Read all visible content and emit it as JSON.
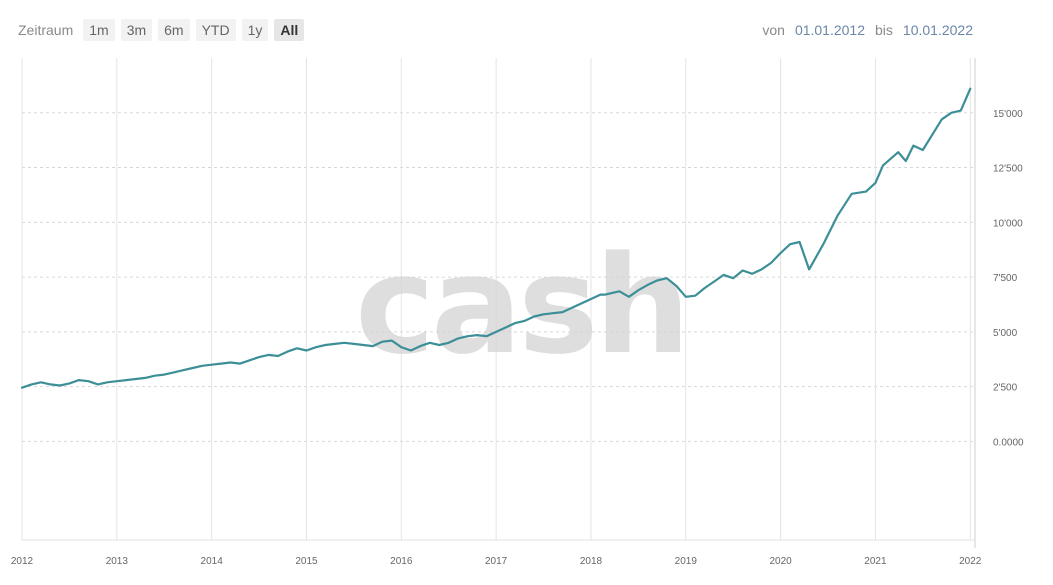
{
  "toolbar": {
    "label": "Zeitraum",
    "ranges": [
      "1m",
      "3m",
      "6m",
      "YTD",
      "1y",
      "All"
    ],
    "active_range": "All"
  },
  "date_range": {
    "from_label": "von",
    "from_value": "01.01.2012",
    "to_label": "bis",
    "to_value": "10.01.2022"
  },
  "watermark": "cash",
  "colors": {
    "line": "#3d8f97",
    "grid": "#d7d7d7",
    "axis_text": "#666666"
  },
  "chart_data": {
    "type": "line",
    "title": "",
    "xlabel": "",
    "ylabel": "",
    "xlim": [
      2012.0,
      2022.05
    ],
    "ylim": [
      -4500,
      17500
    ],
    "grid": true,
    "x_ticks": [
      "2012",
      "2013",
      "2014",
      "2015",
      "2016",
      "2017",
      "2018",
      "2019",
      "2020",
      "2021",
      "2022"
    ],
    "y_ticks": [
      {
        "value": 0,
        "label": "0.0000"
      },
      {
        "value": 2500,
        "label": "2'500"
      },
      {
        "value": 5000,
        "label": "5'000"
      },
      {
        "value": 7500,
        "label": "7'500"
      },
      {
        "value": 10000,
        "label": "10'000"
      },
      {
        "value": 12500,
        "label": "12'500"
      },
      {
        "value": 15000,
        "label": "15'000"
      }
    ],
    "series": [
      {
        "x": [
          2012.0,
          2012.1,
          2012.2,
          2012.3,
          2012.4,
          2012.5,
          2012.6,
          2012.7,
          2012.8,
          2012.9,
          2013.0,
          2013.1,
          2013.2,
          2013.3,
          2013.4,
          2013.5,
          2013.6,
          2013.7,
          2013.8,
          2013.9,
          2014.0,
          2014.1,
          2014.2,
          2014.3,
          2014.4,
          2014.5,
          2014.6,
          2014.7,
          2014.8,
          2014.9,
          2015.0,
          2015.1,
          2015.2,
          2015.3,
          2015.4,
          2015.5,
          2015.6,
          2015.7,
          2015.8,
          2015.9,
          2016.0,
          2016.1,
          2016.2,
          2016.3,
          2016.4,
          2016.5,
          2016.6,
          2016.7,
          2016.8,
          2016.9,
          2017.0,
          2017.1,
          2017.2,
          2017.3,
          2017.4,
          2017.5,
          2017.6,
          2017.7,
          2017.8,
          2017.9,
          2018.0,
          2018.1,
          2018.15,
          2018.3,
          2018.4,
          2018.5,
          2018.6,
          2018.7,
          2018.8,
          2018.9,
          2019.0,
          2019.1,
          2019.2,
          2019.3,
          2019.4,
          2019.5,
          2019.6,
          2019.7,
          2019.8,
          2019.9,
          2020.0,
          2020.1,
          2020.2,
          2020.3,
          2020.45,
          2020.6,
          2020.75,
          2020.9,
          2021.0,
          2021.08,
          2021.16,
          2021.24,
          2021.32,
          2021.4,
          2021.5,
          2021.6,
          2021.7,
          2021.8,
          2021.9,
          2022.0
        ],
        "y": [
          2450,
          2600,
          2700,
          2600,
          2550,
          2650,
          2800,
          2750,
          2600,
          2700,
          2750,
          2800,
          2850,
          2900,
          3000,
          3050,
          3150,
          3250,
          3350,
          3450,
          3500,
          3550,
          3600,
          3550,
          3700,
          3850,
          3950,
          3900,
          4100,
          4250,
          4150,
          4300,
          4400,
          4450,
          4500,
          4450,
          4400,
          4350,
          4550,
          4600,
          4300,
          4150,
          4350,
          4500,
          4400,
          4500,
          4700,
          4800,
          4850,
          4800,
          5000,
          5200,
          5400,
          5500,
          5700,
          5800,
          5850,
          5900,
          6100,
          6300,
          6500,
          6700,
          6700,
          6850,
          6600,
          6900,
          7150,
          7350,
          7450,
          7100,
          6600,
          6650,
          7000,
          7300,
          7600,
          7450,
          7800,
          7650,
          7850,
          8150,
          8600,
          9000,
          9100,
          7850,
          9000,
          10300,
          11300,
          11400,
          11800,
          12600,
          12900,
          13200,
          12800,
          13500,
          13300,
          14000,
          14700,
          15000,
          15100,
          16100
        ]
      }
    ]
  }
}
